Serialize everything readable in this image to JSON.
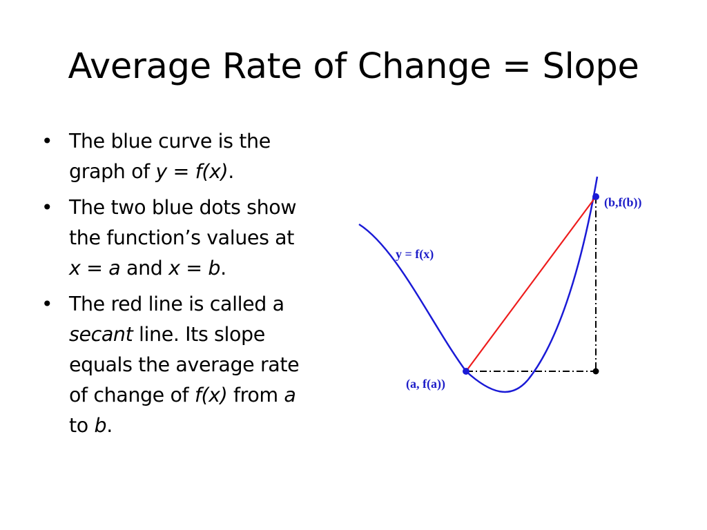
{
  "slide": {
    "title": "Average Rate of Change = Slope"
  },
  "bullets": [
    {
      "lines": [
        [
          {
            "text": "The blue curve is the",
            "italic": false
          }
        ],
        [
          {
            "text": "graph of ",
            "italic": false
          },
          {
            "text": "y = f(x)",
            "italic": true
          },
          {
            "text": ".",
            "italic": false
          }
        ]
      ]
    },
    {
      "lines": [
        [
          {
            "text": "The two blue dots show",
            "italic": false
          }
        ],
        [
          {
            "text": "the function’s values at",
            "italic": false
          }
        ],
        [
          {
            "text": "x = a",
            "italic": true
          },
          {
            "text": " and ",
            "italic": false
          },
          {
            "text": "x = b",
            "italic": true
          },
          {
            "text": ".",
            "italic": false
          }
        ]
      ]
    },
    {
      "lines": [
        [
          {
            "text": "The red line is called a",
            "italic": false
          }
        ],
        [
          {
            "text": "secant",
            "italic": true
          },
          {
            "text": " line. Its slope",
            "italic": false
          }
        ],
        [
          {
            "text": "equals the average rate",
            "italic": false
          }
        ],
        [
          {
            "text": "of change of ",
            "italic": false
          },
          {
            "text": "f(x)",
            "italic": true
          },
          {
            "text": " from ",
            "italic": false
          },
          {
            "text": "a",
            "italic": true
          }
        ],
        [
          {
            "text": "to ",
            "italic": false
          },
          {
            "text": "b",
            "italic": true
          },
          {
            "text": ".",
            "italic": false
          }
        ]
      ]
    }
  ],
  "graph": {
    "curve_label": "y = f(x)",
    "point_a_label": "(a, f(a))",
    "point_b_label": "(b,f(b))",
    "colors": {
      "curve": "#1a1ad6",
      "secant": "#ee1c1c",
      "dashed": "#000000",
      "label": "#1c1cc8"
    }
  }
}
